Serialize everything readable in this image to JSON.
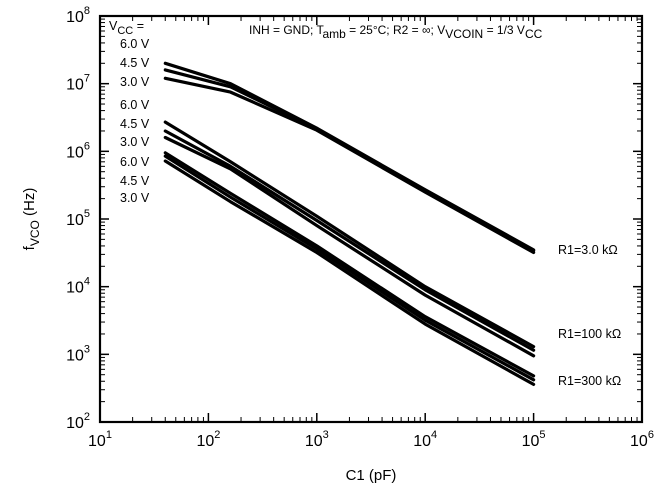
{
  "chart_data": {
    "type": "line",
    "xscale": "log",
    "yscale": "log",
    "xlim": [
      10,
      1000000
    ],
    "ylim": [
      100,
      100000000
    ],
    "grid": false,
    "xlabel": "C1 (pF)",
    "ylabel": {
      "main": "f",
      "sub": "VCO",
      "rest": " (Hz)"
    },
    "xticks": [
      {
        "base": "10",
        "exp": "1",
        "value": 10
      },
      {
        "base": "10",
        "exp": "2",
        "value": 100
      },
      {
        "base": "10",
        "exp": "3",
        "value": 1000
      },
      {
        "base": "10",
        "exp": "4",
        "value": 10000
      },
      {
        "base": "10",
        "exp": "5",
        "value": 100000
      },
      {
        "base": "10",
        "exp": "6",
        "value": 1000000
      }
    ],
    "yticks": [
      {
        "base": "10",
        "exp": "2",
        "value": 100
      },
      {
        "base": "10",
        "exp": "3",
        "value": 1000
      },
      {
        "base": "10",
        "exp": "4",
        "value": 10000
      },
      {
        "base": "10",
        "exp": "5",
        "value": 100000
      },
      {
        "base": "10",
        "exp": "6",
        "value": 1000000
      },
      {
        "base": "10",
        "exp": "7",
        "value": 10000000
      },
      {
        "base": "10",
        "exp": "8",
        "value": 100000000
      }
    ],
    "conditions": [
      {
        "text": "INH = GND; T",
        "kind": "normal"
      },
      {
        "text": "amb",
        "kind": "sub"
      },
      {
        "text": " = 25°C; R2 = ∞; V",
        "kind": "normal"
      },
      {
        "text": "VCOIN",
        "kind": "sub"
      },
      {
        "text": " = 1/3 V",
        "kind": "normal"
      },
      {
        "text": "CC",
        "kind": "sub"
      }
    ],
    "vcc_header": {
      "main": "V",
      "sub": "CC",
      "rest": " ="
    },
    "groups": [
      {
        "label": "R1=3.0 kΩ",
        "vcc_labels": [
          "6.0 V",
          "4.5 V",
          "3.0 V"
        ],
        "series": [
          {
            "vcc": "6.0 V",
            "x": [
              40,
              160,
              1000,
              10000,
              100000
            ],
            "y": [
              20000000,
              10000000,
              2200000,
              270000,
              35000
            ]
          },
          {
            "vcc": "4.5 V",
            "x": [
              40,
              160,
              1000,
              10000,
              100000
            ],
            "y": [
              16000000,
              9000000,
              2150000,
              260000,
              34000
            ]
          },
          {
            "vcc": "3.0 V",
            "x": [
              40,
              160,
              1000,
              10000,
              100000
            ],
            "y": [
              12000000,
              7500000,
              2050000,
              250000,
              32000
            ]
          }
        ]
      },
      {
        "label": "R1=100 kΩ",
        "vcc_labels": [
          "6.0 V",
          "4.5 V",
          "3.0 V"
        ],
        "series": [
          {
            "vcc": "6.0 V",
            "x": [
              40,
              160,
              1000,
              10000,
              100000
            ],
            "y": [
              2700000,
              700000,
              110000,
              10000,
              1300
            ]
          },
          {
            "vcc": "4.5 V",
            "x": [
              40,
              160,
              1000,
              10000,
              100000
            ],
            "y": [
              2000000,
              600000,
              95000,
              9000,
              1150
            ]
          },
          {
            "vcc": "3.0 V",
            "x": [
              40,
              160,
              1000,
              10000,
              100000
            ],
            "y": [
              1600000,
              550000,
              80000,
              7500,
              950
            ]
          }
        ]
      },
      {
        "label": "R1=300 kΩ",
        "vcc_labels": [
          "6.0 V",
          "4.5 V",
          "3.0 V"
        ],
        "series": [
          {
            "vcc": "6.0 V",
            "x": [
              40,
              160,
              1000,
              10000,
              100000
            ],
            "y": [
              950000,
              240000,
              40000,
              3600,
              480
            ]
          },
          {
            "vcc": "4.5 V",
            "x": [
              40,
              160,
              1000,
              10000,
              100000
            ],
            "y": [
              850000,
              210000,
              36000,
              3200,
              420
            ]
          },
          {
            "vcc": "3.0 V",
            "x": [
              40,
              160,
              1000,
              10000,
              100000
            ],
            "y": [
              720000,
              180000,
              32000,
              2800,
              360
            ]
          }
        ]
      }
    ]
  }
}
